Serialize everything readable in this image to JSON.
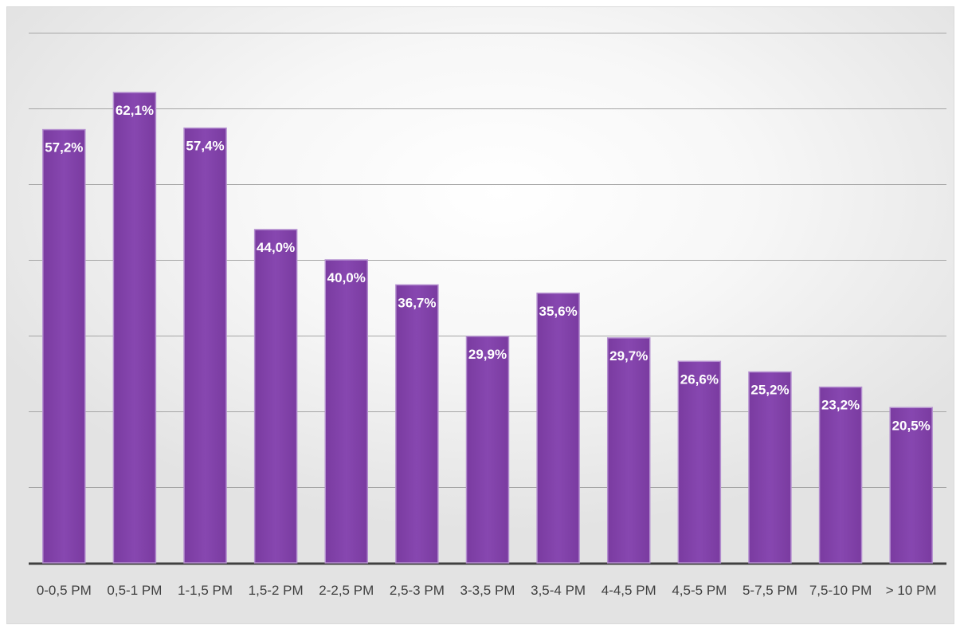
{
  "chart_data": {
    "type": "bar",
    "title": "",
    "xlabel": "",
    "ylabel": "",
    "categories": [
      "0-0,5 PM",
      "0,5-1 PM",
      "1-1,5 PM",
      "1,5-2 PM",
      "2-2,5 PM",
      "2,5-3 PM",
      "3-3,5 PM",
      "3,5-4 PM",
      "4-4,5 PM",
      "4,5-5 PM",
      "5-7,5 PM",
      "7,5-10 PM",
      "> 10 PM"
    ],
    "values": [
      57.2,
      62.1,
      57.4,
      44.0,
      40.0,
      36.7,
      29.9,
      35.6,
      29.7,
      26.6,
      25.2,
      23.2,
      20.5
    ],
    "data_labels": [
      "57,2%",
      "62,1%",
      "57,4%",
      "44,0%",
      "40,0%",
      "36,7%",
      "29,9%",
      "35,6%",
      "29,7%",
      "26,6%",
      "25,2%",
      "23,2%",
      "20,5%"
    ],
    "ylim": [
      0,
      70
    ],
    "grid": true,
    "legend": "none",
    "colors": {
      "bar": "#7f3fa6",
      "bar_border": "#b48fcf",
      "grid": "#a6a6a6",
      "axis": "#404040"
    }
  }
}
